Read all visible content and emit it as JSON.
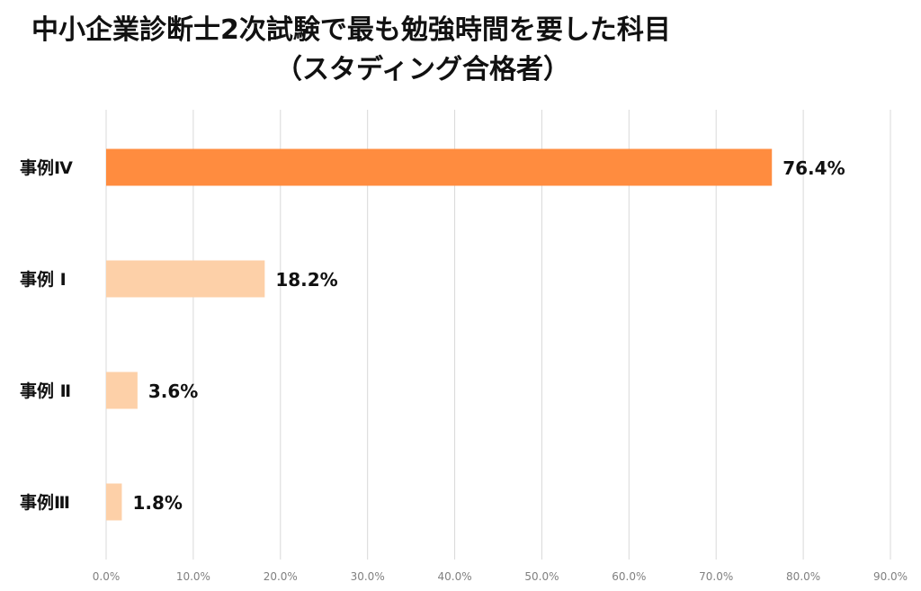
{
  "chart_data": {
    "type": "bar",
    "orientation": "horizontal",
    "title": "中小企業診断士2次試験で最も勉強時間を要した科目",
    "subtitle": "（スタディング合格者）",
    "categories": [
      "事例Ⅳ",
      "事例 Ⅰ",
      "事例 Ⅱ",
      "事例Ⅲ"
    ],
    "values": [
      76.4,
      18.2,
      3.6,
      1.8
    ],
    "value_labels": [
      "76.4%",
      "18.2%",
      "3.6%",
      "1.8%"
    ],
    "bar_colors": [
      "#ff8c3f",
      "#fdd0a8",
      "#fdd0a8",
      "#fdd0a8"
    ],
    "xlim": [
      0,
      90
    ],
    "xticks": [
      0,
      10,
      20,
      30,
      40,
      50,
      60,
      70,
      80,
      90
    ],
    "xtick_labels": [
      "0.0%",
      "10.0%",
      "20.0%",
      "30.0%",
      "40.0%",
      "50.0%",
      "60.0%",
      "70.0%",
      "80.0%",
      "90.0%"
    ],
    "xlabel": "",
    "ylabel": "",
    "grid": "vertical",
    "legend": "none",
    "gridline_color": "#d9d9d9"
  }
}
